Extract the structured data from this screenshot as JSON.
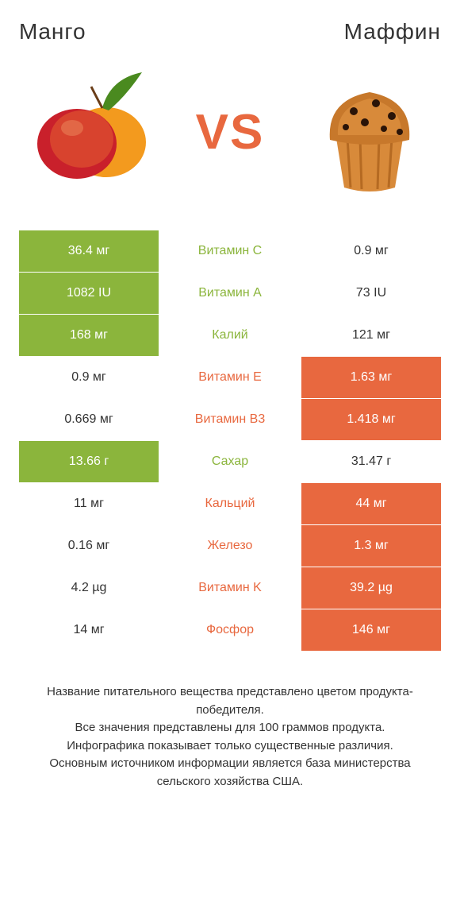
{
  "leftTitle": "Mанго",
  "rightTitle": "Маффин",
  "vs": "VS",
  "vsColor": "#e8683f",
  "colors": {
    "green": "#8bb53c",
    "orange": "#e8683f",
    "text": "#333333"
  },
  "rows": [
    {
      "left": "36.4 мг",
      "leftWin": true,
      "label": "Витамин C",
      "right": "0.9 мг",
      "rightWin": false
    },
    {
      "left": "1082 IU",
      "leftWin": true,
      "label": "Витамин A",
      "right": "73 IU",
      "rightWin": false
    },
    {
      "left": "168 мг",
      "leftWin": true,
      "label": "Калий",
      "right": "121 мг",
      "rightWin": false
    },
    {
      "left": "0.9 мг",
      "leftWin": false,
      "label": "Витамин E",
      "right": "1.63 мг",
      "rightWin": true
    },
    {
      "left": "0.669 мг",
      "leftWin": false,
      "label": "Витамин B3",
      "right": "1.418 мг",
      "rightWin": true
    },
    {
      "left": "13.66 г",
      "leftWin": true,
      "label": "Сахар",
      "right": "31.47 г",
      "rightWin": false
    },
    {
      "left": "11 мг",
      "leftWin": false,
      "label": "Кальций",
      "right": "44 мг",
      "rightWin": true
    },
    {
      "left": "0.16 мг",
      "leftWin": false,
      "label": "Железо",
      "right": "1.3 мг",
      "rightWin": true
    },
    {
      "left": "4.2 µg",
      "leftWin": false,
      "label": "Витамин K",
      "right": "39.2 µg",
      "rightWin": true
    },
    {
      "left": "14 мг",
      "leftWin": false,
      "label": "Фосфор",
      "right": "146 мг",
      "rightWin": true
    }
  ],
  "footnote": "Название питательного вещества представлено цветом продукта-победителя.\nВсе значения представлены для 100 граммов продукта.\nИнфографика показывает только существенные различия.\nОсновным источником информации является база министерства сельского хозяйства США."
}
